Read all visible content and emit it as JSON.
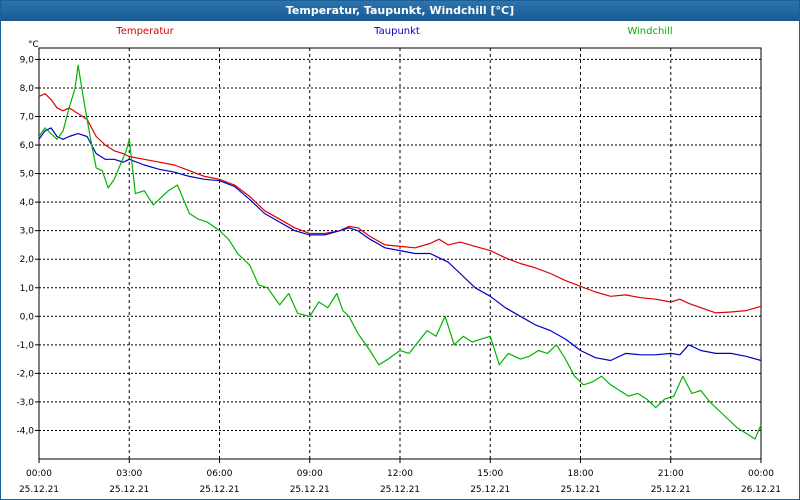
{
  "chart_data": {
    "type": "line",
    "title": "Temperatur, Taupunkt, Windchill [°C]",
    "ylabel": "°C",
    "xlabel": "",
    "ylim": [
      -5.0,
      9.4
    ],
    "xlim": [
      0,
      24
    ],
    "y_ticks": [
      "9,0",
      "8,0",
      "7,0",
      "6,0",
      "5,0",
      "4,0",
      "3,0",
      "2,0",
      "1,0",
      "0,0",
      "-1,0",
      "-2,0",
      "-3,0",
      "-4,0"
    ],
    "y_tick_values": [
      9,
      8,
      7,
      6,
      5,
      4,
      3,
      2,
      1,
      0,
      -1,
      -2,
      -3,
      -4
    ],
    "x_ticks": [
      {
        "time": "00:00",
        "date": "25.12.21"
      },
      {
        "time": "03:00",
        "date": "25.12.21"
      },
      {
        "time": "06:00",
        "date": "25.12.21"
      },
      {
        "time": "09:00",
        "date": "25.12.21"
      },
      {
        "time": "12:00",
        "date": "25.12.21"
      },
      {
        "time": "15:00",
        "date": "25.12.21"
      },
      {
        "time": "18:00",
        "date": "25.12.21"
      },
      {
        "time": "21:00",
        "date": "25.12.21"
      },
      {
        "time": "00:00",
        "date": "26.12.21"
      }
    ],
    "grid": true,
    "legend_position": "top",
    "series": [
      {
        "name": "Temperatur",
        "color": "#e00000",
        "x": [
          0,
          0.2,
          0.4,
          0.6,
          0.8,
          1.0,
          1.3,
          1.6,
          1.9,
          2.2,
          2.5,
          2.8,
          3.0,
          3.5,
          4.0,
          4.5,
          5.0,
          5.5,
          6.0,
          6.5,
          7.0,
          7.5,
          8.0,
          8.5,
          9.0,
          9.5,
          10.0,
          10.3,
          10.6,
          11.0,
          11.5,
          12.0,
          12.5,
          13.0,
          13.3,
          13.6,
          14.0,
          14.5,
          15.0,
          15.5,
          16.0,
          16.5,
          17.0,
          17.5,
          18.0,
          18.5,
          19.0,
          19.5,
          20.0,
          20.5,
          21.0,
          21.3,
          21.6,
          22.0,
          22.5,
          23.0,
          23.5,
          24.0
        ],
        "y": [
          7.7,
          7.8,
          7.6,
          7.3,
          7.2,
          7.3,
          7.1,
          6.9,
          6.3,
          6.0,
          5.8,
          5.7,
          5.6,
          5.5,
          5.4,
          5.3,
          5.1,
          4.9,
          4.8,
          4.6,
          4.2,
          3.7,
          3.4,
          3.1,
          2.9,
          2.9,
          3.0,
          3.15,
          3.1,
          2.8,
          2.5,
          2.45,
          2.4,
          2.55,
          2.7,
          2.5,
          2.6,
          2.45,
          2.3,
          2.05,
          1.85,
          1.7,
          1.5,
          1.25,
          1.05,
          0.85,
          0.7,
          0.75,
          0.65,
          0.6,
          0.5,
          0.6,
          0.45,
          0.3,
          0.12,
          0.15,
          0.2,
          0.35
        ]
      },
      {
        "name": "Taupunkt",
        "color": "#0000c8",
        "x": [
          0,
          0.2,
          0.4,
          0.6,
          0.8,
          1.0,
          1.3,
          1.6,
          1.9,
          2.2,
          2.5,
          2.8,
          3.0,
          3.5,
          4.0,
          4.5,
          5.0,
          5.5,
          6.0,
          6.5,
          7.0,
          7.5,
          8.0,
          8.5,
          9.0,
          9.5,
          10.0,
          10.3,
          10.6,
          11.0,
          11.5,
          12.0,
          12.5,
          13.0,
          13.3,
          13.6,
          14.0,
          14.5,
          15.0,
          15.5,
          16.0,
          16.5,
          17.0,
          17.5,
          18.0,
          18.5,
          19.0,
          19.5,
          20.0,
          20.5,
          21.0,
          21.3,
          21.6,
          22.0,
          22.5,
          23.0,
          23.5,
          24.0
        ],
        "y": [
          6.2,
          6.5,
          6.6,
          6.3,
          6.2,
          6.3,
          6.4,
          6.3,
          5.7,
          5.5,
          5.5,
          5.4,
          5.5,
          5.3,
          5.15,
          5.05,
          4.9,
          4.8,
          4.75,
          4.55,
          4.1,
          3.6,
          3.3,
          3.0,
          2.85,
          2.85,
          3.0,
          3.1,
          3.0,
          2.7,
          2.4,
          2.3,
          2.2,
          2.2,
          2.05,
          1.9,
          1.5,
          1.0,
          0.7,
          0.3,
          0.0,
          -0.3,
          -0.5,
          -0.8,
          -1.2,
          -1.45,
          -1.55,
          -1.3,
          -1.35,
          -1.35,
          -1.3,
          -1.35,
          -1.0,
          -1.2,
          -1.3,
          -1.3,
          -1.4,
          -1.55
        ]
      },
      {
        "name": "Windchill",
        "color": "#00b400",
        "x": [
          0,
          0.2,
          0.4,
          0.6,
          0.8,
          1.0,
          1.2,
          1.3,
          1.5,
          1.7,
          1.9,
          2.1,
          2.3,
          2.5,
          2.7,
          2.9,
          3.0,
          3.2,
          3.5,
          3.8,
          4.0,
          4.3,
          4.6,
          5.0,
          5.3,
          5.6,
          6.0,
          6.3,
          6.6,
          7.0,
          7.3,
          7.6,
          8.0,
          8.3,
          8.6,
          9.0,
          9.3,
          9.6,
          9.9,
          10.1,
          10.3,
          10.6,
          11.0,
          11.3,
          11.6,
          12.0,
          12.3,
          12.6,
          12.9,
          13.2,
          13.5,
          13.8,
          14.1,
          14.4,
          14.7,
          15.0,
          15.3,
          15.6,
          16.0,
          16.3,
          16.6,
          16.9,
          17.2,
          17.5,
          17.8,
          18.1,
          18.4,
          18.7,
          19.0,
          19.3,
          19.6,
          19.9,
          20.2,
          20.5,
          20.8,
          21.1,
          21.4,
          21.7,
          22.0,
          22.3,
          22.6,
          22.9,
          23.2,
          23.5,
          23.8,
          24.0
        ],
        "y": [
          6.3,
          6.6,
          6.4,
          6.2,
          6.5,
          7.3,
          8.0,
          8.8,
          7.5,
          6.3,
          5.2,
          5.1,
          4.5,
          4.8,
          5.3,
          5.8,
          6.2,
          4.3,
          4.4,
          3.9,
          4.1,
          4.4,
          4.6,
          3.6,
          3.4,
          3.3,
          3.0,
          2.7,
          2.2,
          1.8,
          1.1,
          1.0,
          0.4,
          0.8,
          0.1,
          0.0,
          0.5,
          0.3,
          0.8,
          0.2,
          0.0,
          -0.6,
          -1.2,
          -1.7,
          -1.5,
          -1.2,
          -1.3,
          -0.9,
          -0.5,
          -0.7,
          0.0,
          -1.0,
          -0.7,
          -0.9,
          -0.8,
          -0.7,
          -1.7,
          -1.3,
          -1.5,
          -1.4,
          -1.2,
          -1.3,
          -1.0,
          -1.5,
          -2.1,
          -2.4,
          -2.3,
          -2.1,
          -2.4,
          -2.6,
          -2.8,
          -2.7,
          -2.9,
          -3.2,
          -2.9,
          -2.8,
          -2.1,
          -2.7,
          -2.6,
          -3.0,
          -3.3,
          -3.6,
          -3.9,
          -4.1,
          -4.3,
          -3.8
        ]
      }
    ]
  }
}
